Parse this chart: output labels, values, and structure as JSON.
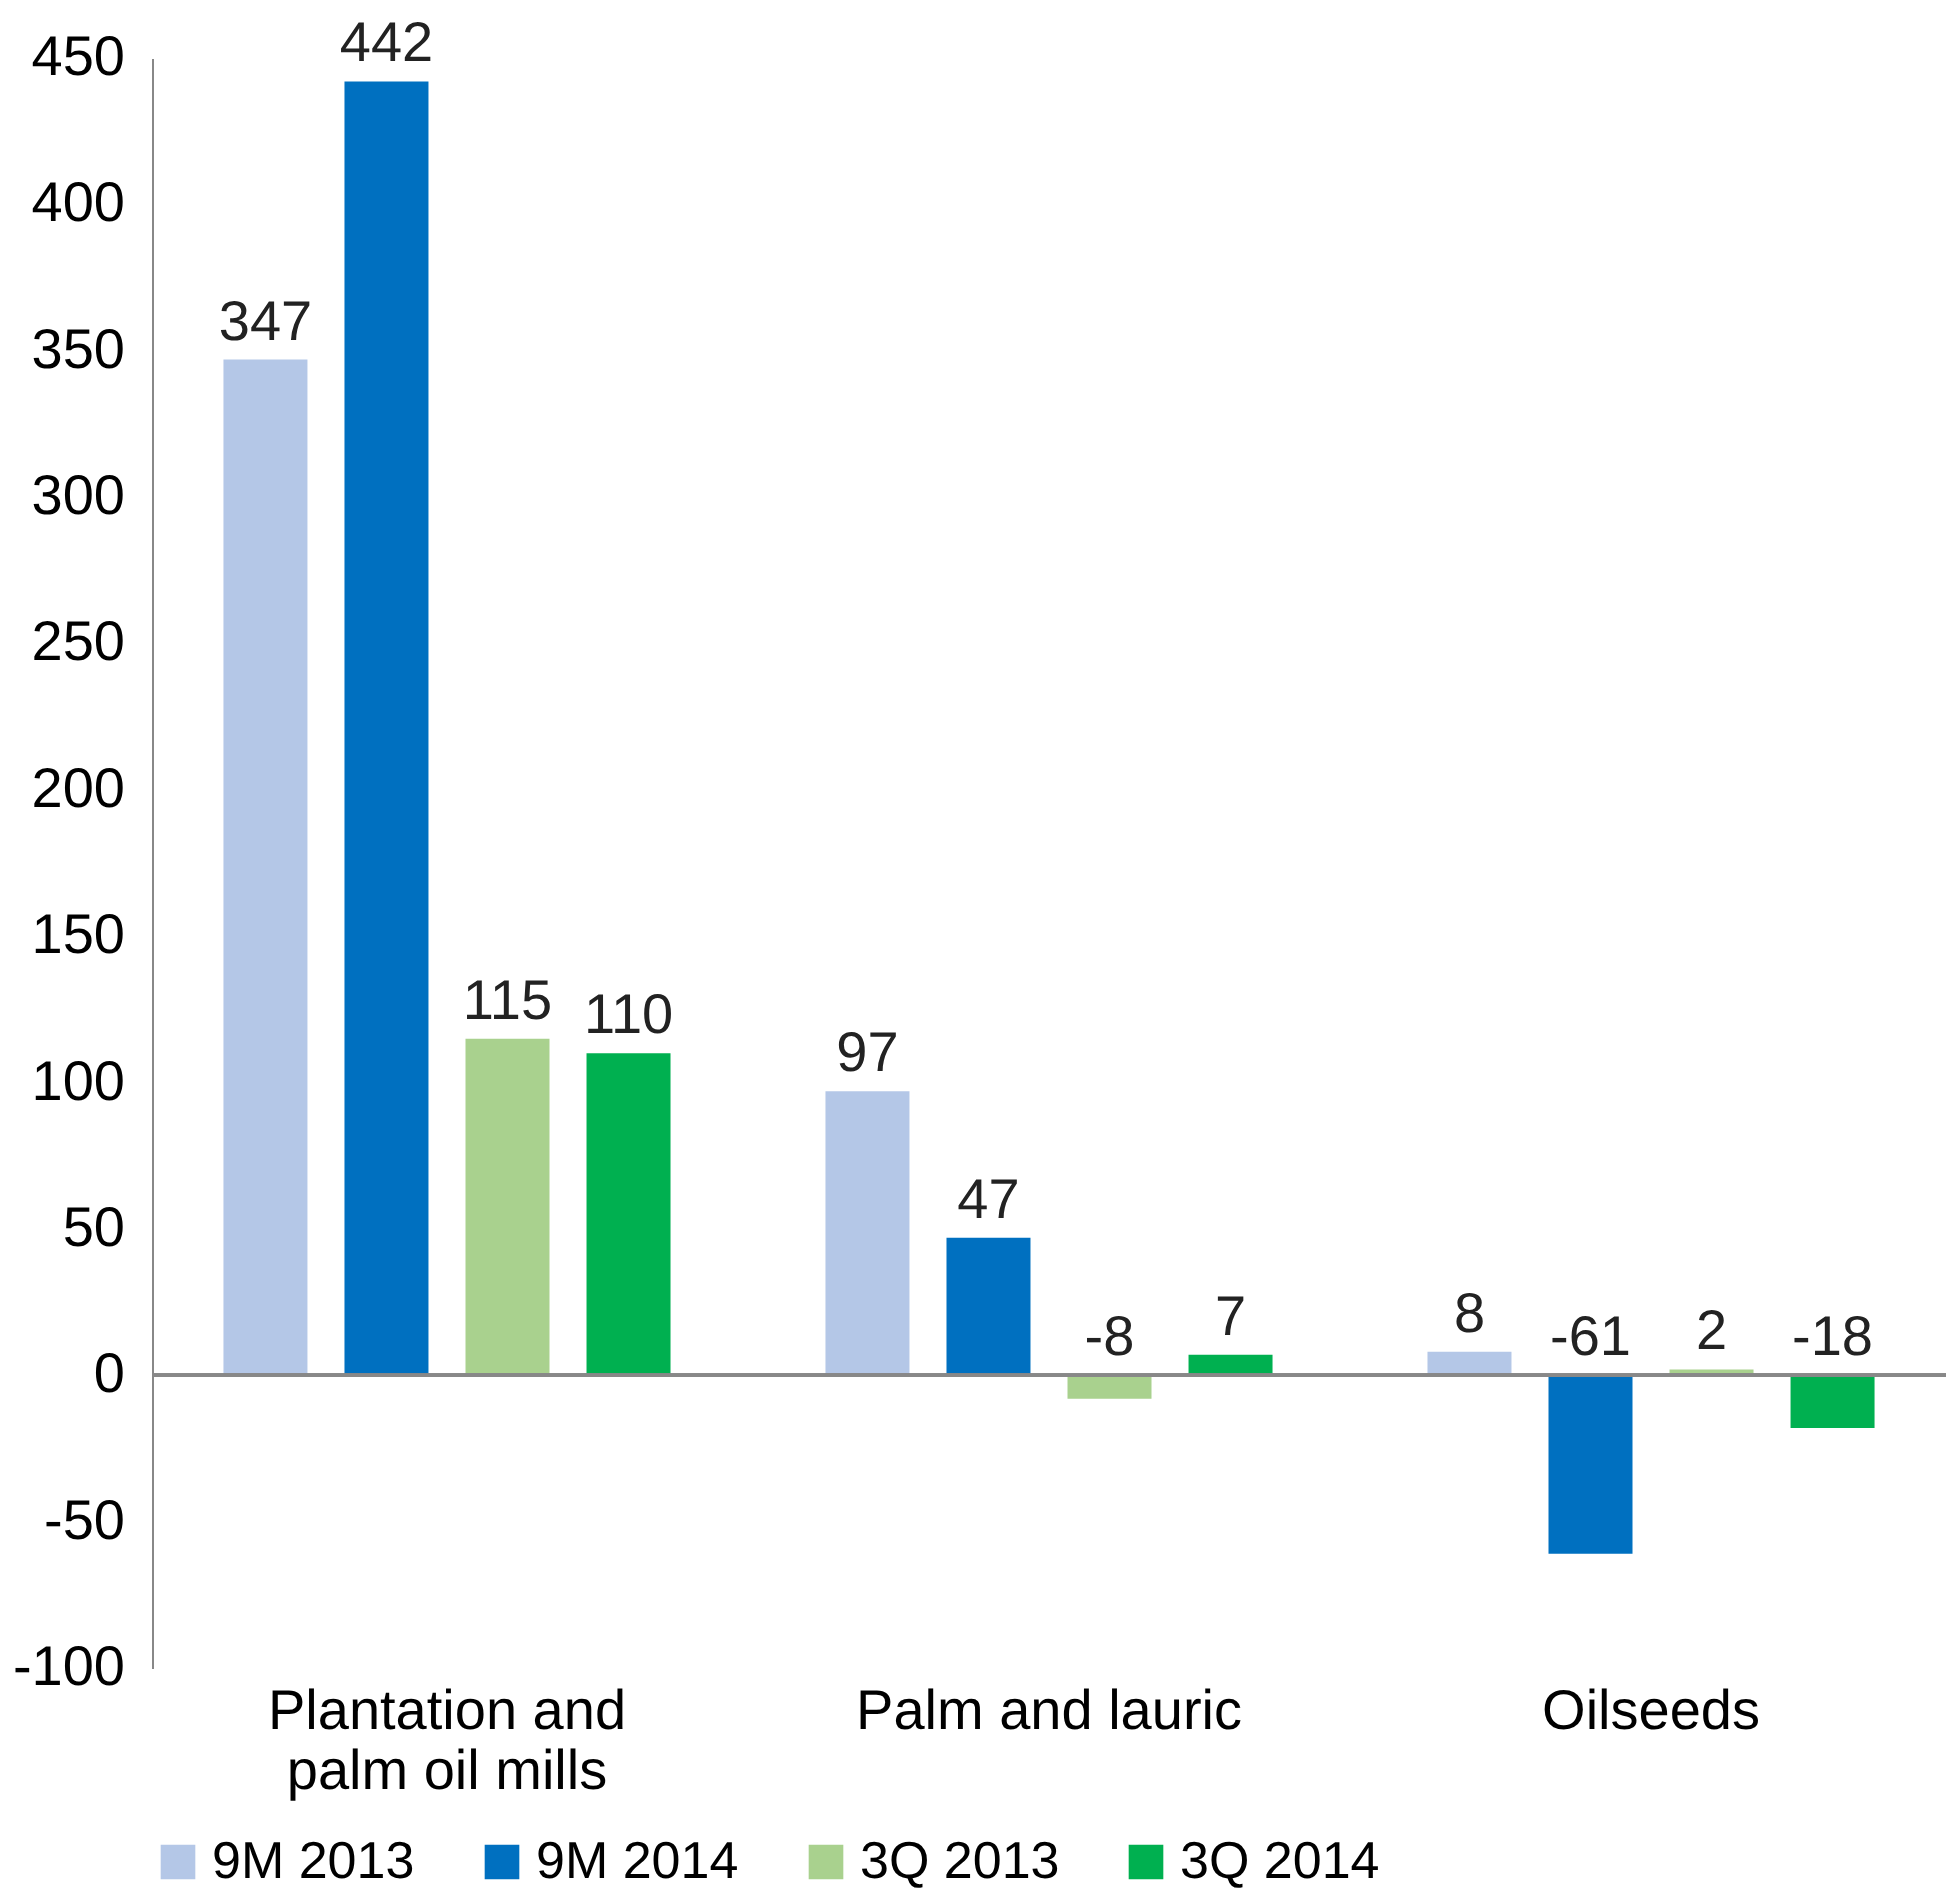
{
  "chart_data": {
    "type": "bar",
    "categories": [
      "Plantation and palm oil mills",
      "Palm and lauric",
      "Oilseeds"
    ],
    "series": [
      {
        "name": "9M 2013",
        "color": "#b4c7e7",
        "values": [
          347,
          97,
          8
        ]
      },
      {
        "name": "9M 2014",
        "color": "#0070c0",
        "values": [
          442,
          47,
          -61
        ]
      },
      {
        "name": "3Q 2013",
        "color": "#a9d18e",
        "values": [
          115,
          -8,
          2
        ]
      },
      {
        "name": "3Q 2014",
        "color": "#00b050",
        "values": [
          110,
          7,
          -18
        ]
      }
    ],
    "ylim": [
      -100,
      450
    ],
    "yticks": [
      -100,
      -50,
      0,
      50,
      100,
      150,
      200,
      250,
      300,
      350,
      400,
      450
    ],
    "ref_lines": [
      {
        "axis": "y",
        "value": 0,
        "color": "#888888"
      }
    ],
    "data_labels": true,
    "grid": false,
    "legend": "bottom"
  }
}
